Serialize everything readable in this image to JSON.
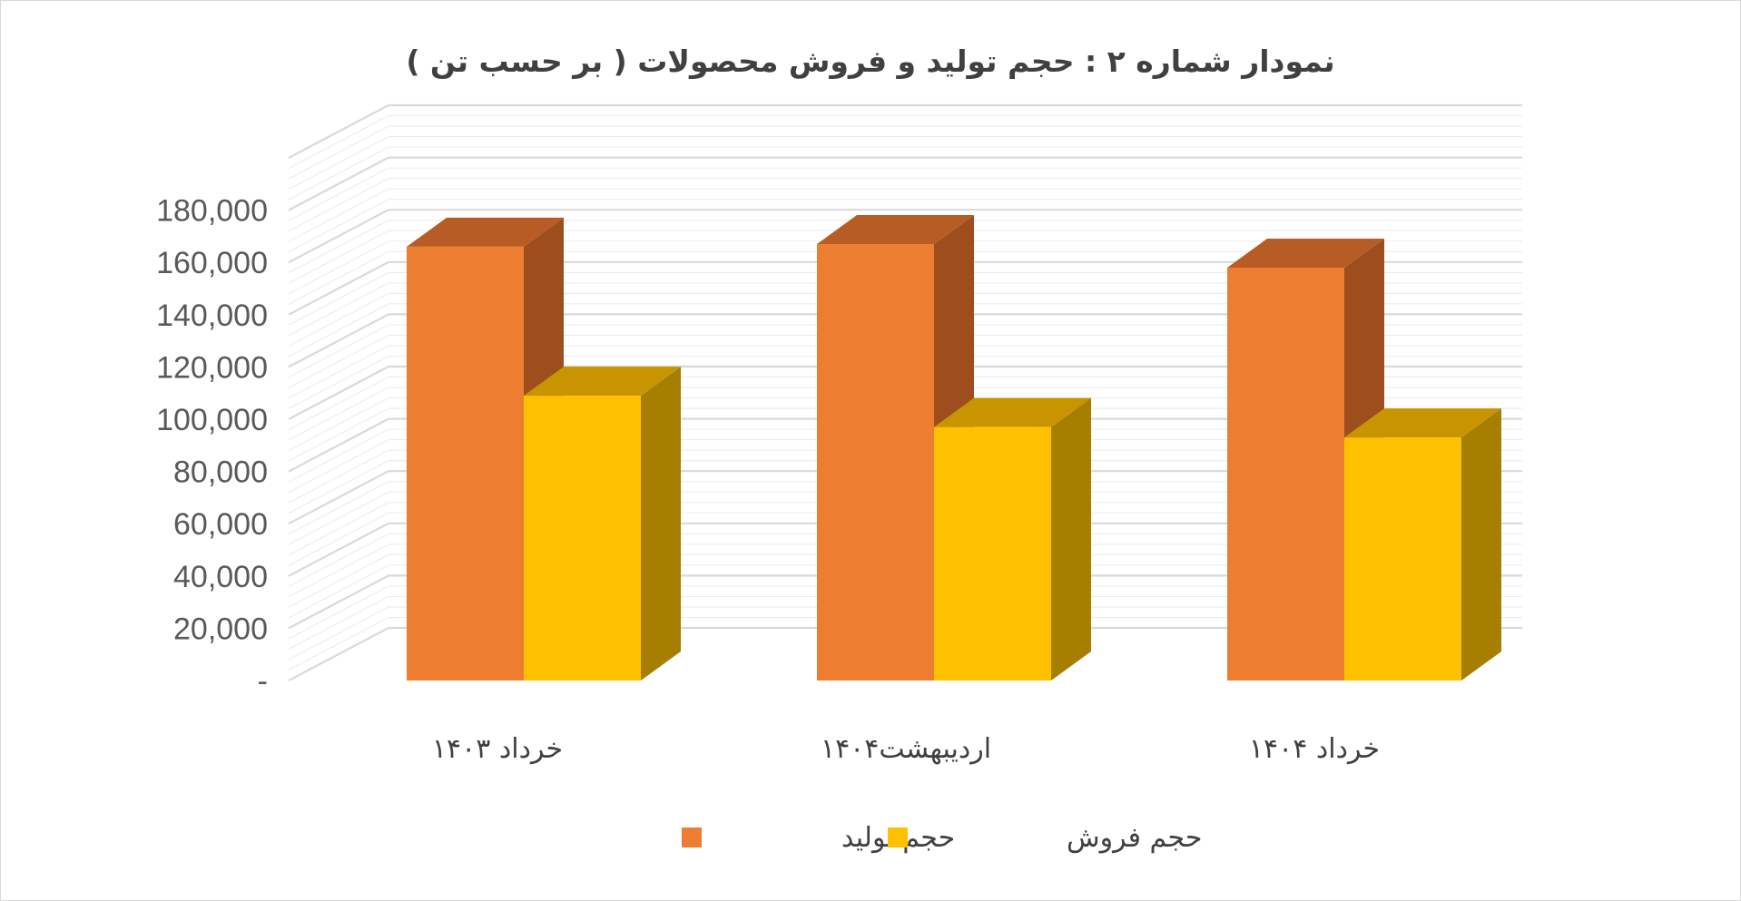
{
  "chart_data": {
    "type": "bar",
    "title": "نمودار شماره ۲ : حجم  تولید و فروش محصولات ( بر حسب تن )",
    "categories": [
      "خرداد ۱۴۰۳",
      "اردیبهشت۱۴۰۴",
      "خرداد ۱۴۰۴"
    ],
    "series": [
      {
        "name": "حجم تولید",
        "values": [
          166000,
          167000,
          158000
        ]
      },
      {
        "name": "حجم فروش",
        "values": [
          109000,
          97000,
          93000
        ]
      }
    ],
    "ylim": [
      0,
      200000
    ],
    "yticks": [
      0,
      20000,
      40000,
      60000,
      80000,
      100000,
      120000,
      140000,
      160000,
      180000
    ],
    "ytick_labels": [
      "-",
      "20,000",
      "40,000",
      "60,000",
      "80,000",
      "100,000",
      "120,000",
      "140,000",
      "160,000",
      "180,000"
    ],
    "grid": true,
    "legend_position": "bottom",
    "three_d": true,
    "colors": {
      "series": [
        "#ED7D31",
        "#FFC000"
      ],
      "series_side": [
        "#9E4E1C",
        "#A67F00"
      ],
      "series_top": [
        "#B85C25",
        "#C89500"
      ],
      "grid": "#d9d9d9"
    }
  }
}
